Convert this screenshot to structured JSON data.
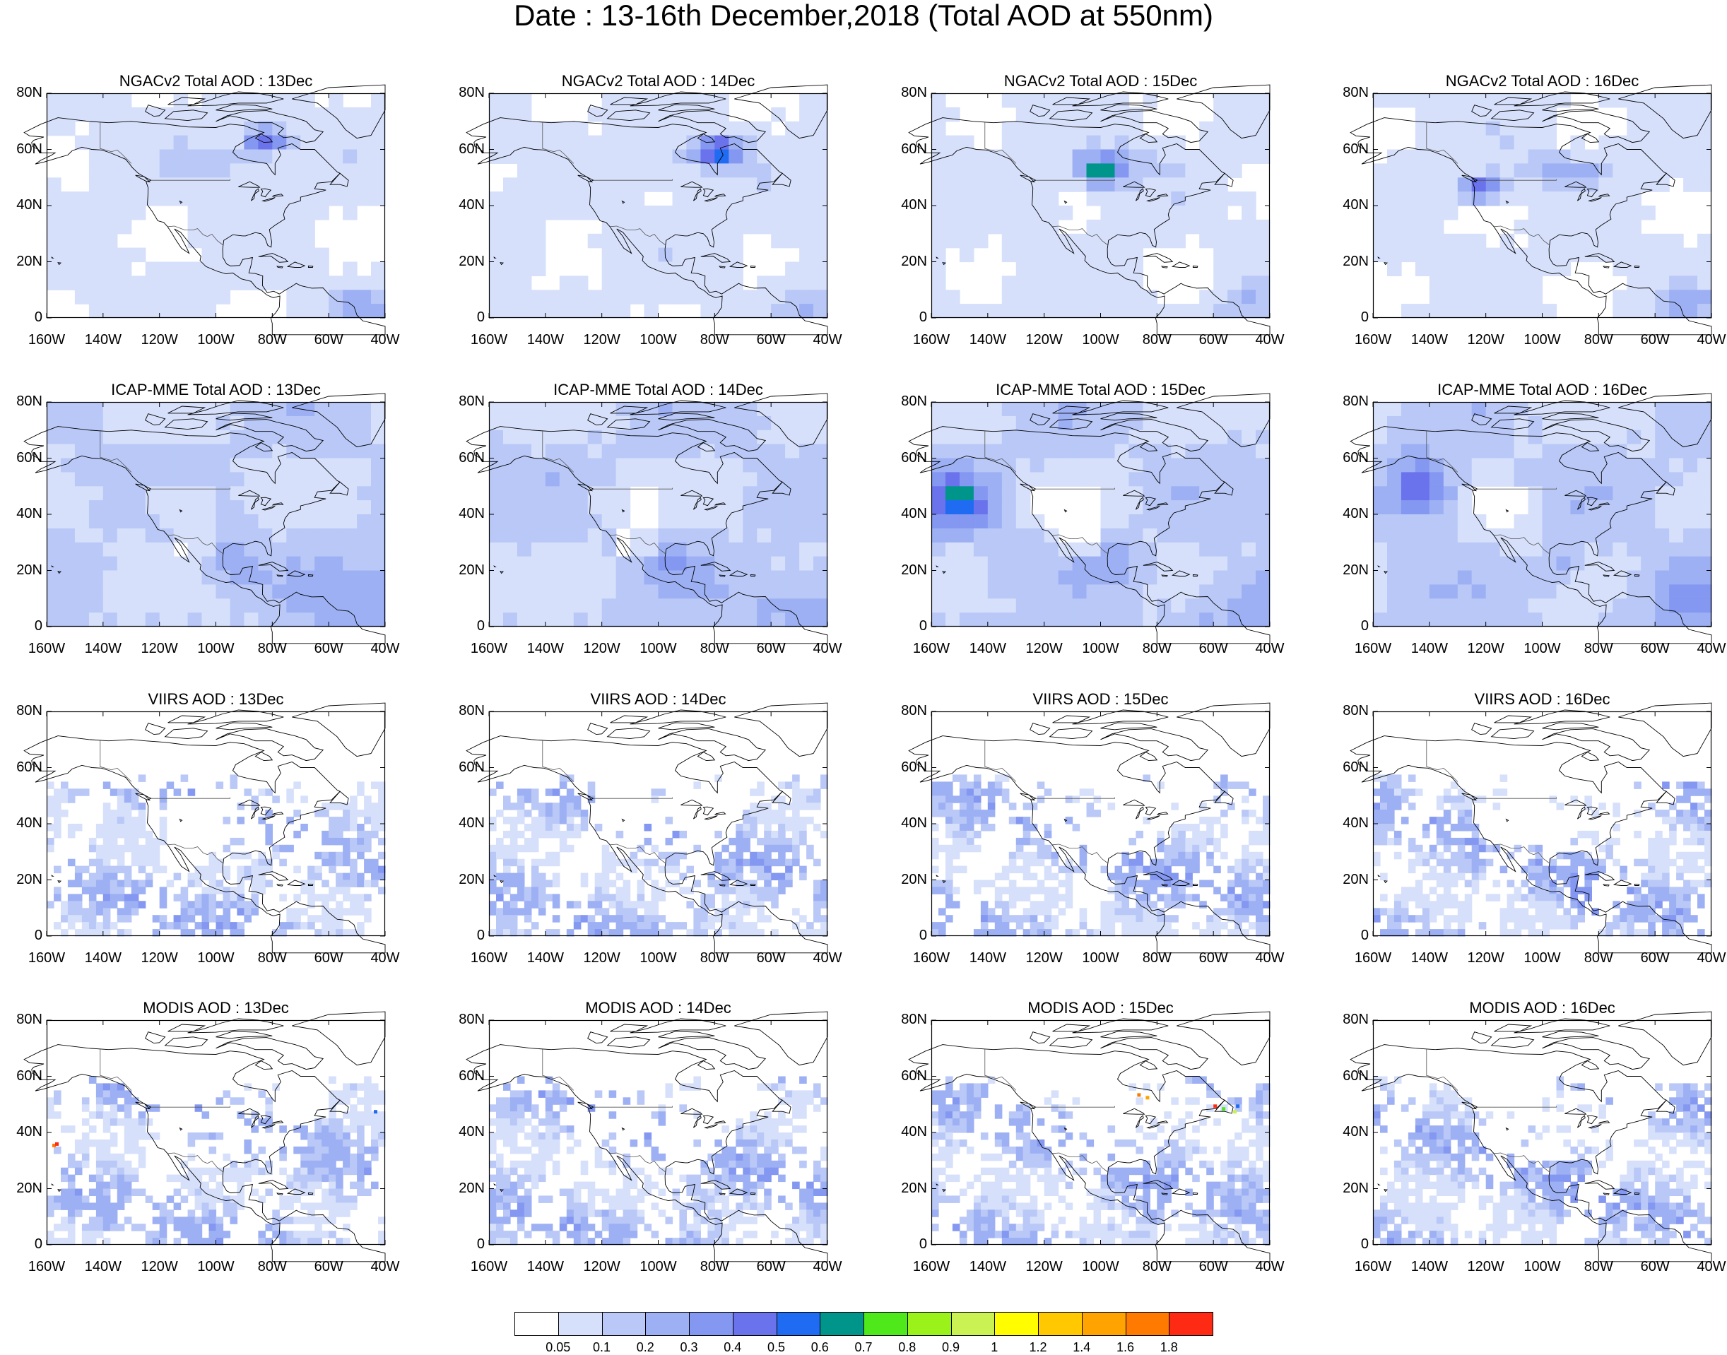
{
  "title": "Date : 13-16th December,2018 (Total AOD at 550nm)",
  "rows": [
    {
      "product": "ngacv2",
      "kind": "model",
      "panels": [
        {
          "title": "NGACv2 Total AOD : 13Dec"
        },
        {
          "title": "NGACv2 Total AOD : 14Dec"
        },
        {
          "title": "NGACv2 Total AOD : 15Dec"
        },
        {
          "title": "NGACv2 Total AOD : 16Dec"
        }
      ]
    },
    {
      "product": "icap-mme",
      "kind": "model",
      "panels": [
        {
          "title": "ICAP-MME Total AOD : 13Dec"
        },
        {
          "title": "ICAP-MME Total AOD : 14Dec"
        },
        {
          "title": "ICAP-MME Total AOD : 15Dec"
        },
        {
          "title": "ICAP-MME Total AOD : 16Dec"
        }
      ]
    },
    {
      "product": "viirs",
      "kind": "satellite",
      "panels": [
        {
          "title": "VIIRS AOD : 13Dec"
        },
        {
          "title": "VIIRS AOD : 14Dec"
        },
        {
          "title": "VIIRS AOD : 15Dec"
        },
        {
          "title": "VIIRS AOD : 16Dec"
        }
      ]
    },
    {
      "product": "modis",
      "kind": "satellite",
      "panels": [
        {
          "title": "MODIS AOD : 13Dec"
        },
        {
          "title": "MODIS AOD : 14Dec"
        },
        {
          "title": "MODIS AOD : 15Dec"
        },
        {
          "title": "MODIS AOD : 16Dec"
        }
      ]
    }
  ],
  "axes": {
    "lat_ticks": [
      "80N",
      "60N",
      "40N",
      "20N",
      "0"
    ],
    "lon_ticks": [
      "160W",
      "140W",
      "120W",
      "100W",
      "80W",
      "60W",
      "40W"
    ],
    "lat_range": [
      0,
      80
    ],
    "lon_range": [
      -160,
      -40
    ]
  },
  "colorbar": {
    "labels": [
      "0.05",
      "0.1",
      "0.2",
      "0.3",
      "0.4",
      "0.5",
      "0.6",
      "0.7",
      "0.8",
      "0.9",
      "1",
      "1.2",
      "1.4",
      "1.6",
      "1.8"
    ],
    "colors": [
      "#ffffff",
      "#d6e0fb",
      "#b9c8f7",
      "#9db0f4",
      "#8497f1",
      "#6a72ec",
      "#1f6cf2",
      "#00958a",
      "#4fe81a",
      "#9af21a",
      "#c9f252",
      "#fffd00",
      "#ffc800",
      "#ffa300",
      "#ff7a00",
      "#ff2a14"
    ]
  }
}
